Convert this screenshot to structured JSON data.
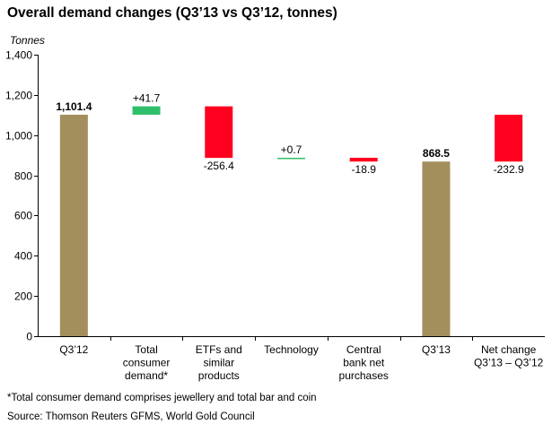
{
  "chart_data": {
    "type": "bar",
    "subtype": "waterfall",
    "title": "Overall demand changes (Q3’13 vs Q3’12, tonnes)",
    "ylabel": "Tonnes",
    "xlabel": "",
    "ylim": [
      0,
      1400
    ],
    "yticks": [
      0,
      200,
      400,
      600,
      800,
      1000,
      1200,
      1400
    ],
    "ytick_labels": [
      "0",
      "200",
      "400",
      "600",
      "800",
      "1,000",
      "1,200",
      "1,400"
    ],
    "grid": false,
    "bars": [
      {
        "category": [
          "Q3’12"
        ],
        "kind": "total",
        "start": 0,
        "end": 1101.4,
        "label": "1,101.4",
        "color": "#a38f5c"
      },
      {
        "category": [
          "Total",
          "consumer",
          "demand*"
        ],
        "kind": "increase",
        "start": 1101.4,
        "end": 1143.1,
        "label": "+41.7",
        "color": "#2fbf6a"
      },
      {
        "category": [
          "ETFs and",
          "similar",
          "products"
        ],
        "kind": "decrease",
        "start": 1143.1,
        "end": 886.7,
        "label": "-256.4",
        "color": "#ff0020"
      },
      {
        "category": [
          "Technology"
        ],
        "kind": "increase",
        "start": 886.7,
        "end": 887.4,
        "label": "+0.7",
        "color": "#2fbf6a"
      },
      {
        "category": [
          "Central",
          "bank net",
          "purchases"
        ],
        "kind": "decrease",
        "start": 887.4,
        "end": 868.5,
        "label": "-18.9",
        "color": "#ff0020"
      },
      {
        "category": [
          "Q3’13"
        ],
        "kind": "total",
        "start": 0,
        "end": 868.5,
        "label": "868.5",
        "color": "#a38f5c"
      },
      {
        "category": [
          "Net change",
          "Q3’13 – Q3’12"
        ],
        "kind": "decrease",
        "start": 1101.4,
        "end": 868.5,
        "label": "-232.9",
        "color": "#ff0020"
      }
    ]
  },
  "footnote": "*Total consumer demand comprises jewellery and total bar and coin",
  "source": "Source: Thomson Reuters GFMS, World Gold Council"
}
